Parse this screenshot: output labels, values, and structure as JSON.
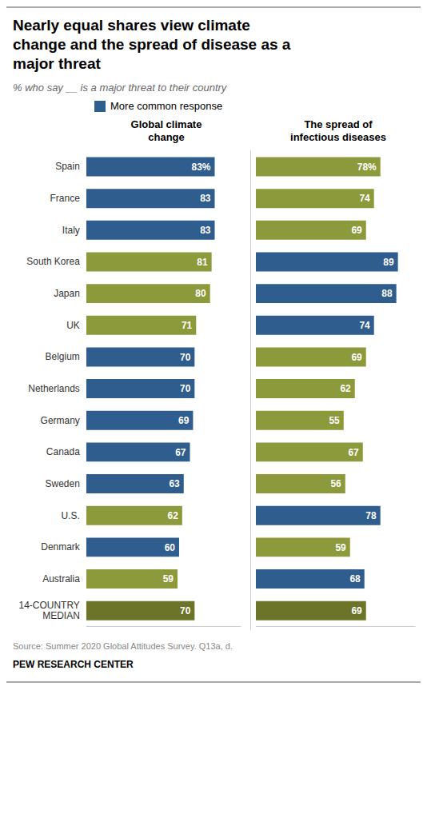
{
  "title": "Nearly equal shares view climate\nchange and the spread of disease as a\nmajor threat",
  "subtitle": "% who say __ is a major threat to their country",
  "annotations": [
    "Source: Summer 2020 Global Attitudes Survey. Q13a, d.",
    "PEW RESEARCH CENTER"
  ],
  "chart_data": [
    {
      "type": "bar",
      "orientation": "horizontal",
      "title": "Global climate\nchange",
      "categories": [
        "Spain",
        "France",
        "Italy",
        "South Korea",
        "Japan",
        "UK",
        "Belgium",
        "Netherlands",
        "Germany",
        "Canada",
        "Sweden",
        "U.S.",
        "Denmark",
        "Australia",
        "14-COUNTRY\nMEDIAN"
      ],
      "series": [
        {
          "name": "More common response",
          "color": "#2E5D8E",
          "values": [
            83,
            83,
            83,
            81,
            80,
            71,
            70,
            70,
            69,
            67,
            63,
            62,
            60,
            59,
            70
          ],
          "value_labels": [
            "83%",
            "83",
            "83",
            "81",
            "80",
            "71",
            "70",
            "70",
            "69",
            "67",
            "63",
            "62",
            "60",
            "59",
            "70"
          ],
          "colors": [
            "#2E5D8E",
            "#2E5D8E",
            "#2E5D8E",
            "#8C9A3C",
            "#8C9A3C",
            "#8C9A3C",
            "#2E5D8E",
            "#2E5D8E",
            "#2E5D8E",
            "#2E5D8E",
            "#2E5D8E",
            "#8C9A3C",
            "#2E5D8E",
            "#8C9A3C",
            "#6B7428"
          ]
        }
      ],
      "xlim": [
        0,
        100
      ],
      "xticks": [],
      "data_labels": true,
      "tick_labels": "y",
      "legend": "top left",
      "grid": false
    },
    {
      "type": "bar",
      "orientation": "horizontal",
      "title": "The spread of\ninfectious diseases",
      "categories": [
        "Spain",
        "France",
        "Italy",
        "South Korea",
        "Japan",
        "UK",
        "Belgium",
        "Netherlands",
        "Germany",
        "Canada",
        "Sweden",
        "U.S.",
        "Denmark",
        "Australia",
        "14-COUNTRY\nMEDIAN"
      ],
      "values": [
        78,
        74,
        69,
        89,
        88,
        74,
        69,
        62,
        55,
        67,
        56,
        78,
        59,
        68,
        69
      ],
      "value_labels": [
        "78%",
        "74",
        "69",
        "89",
        "88",
        "74",
        "69",
        "62",
        "55",
        "67",
        "56",
        "78",
        "59",
        "68",
        "69"
      ],
      "colors": [
        "#8C9A3C",
        "#8C9A3C",
        "#8C9A3C",
        "#2E5D8E",
        "#2E5D8E",
        "#2E5D8E",
        "#8C9A3C",
        "#8C9A3C",
        "#8C9A3C",
        "#8C9A3C",
        "#8C9A3C",
        "#2E5D8E",
        "#8C9A3C",
        "#2E5D8E",
        "#6B7428"
      ],
      "xlim": [
        0,
        100
      ],
      "xticks": [],
      "data_labels": true,
      "tick_labels": false,
      "grid": false
    }
  ]
}
